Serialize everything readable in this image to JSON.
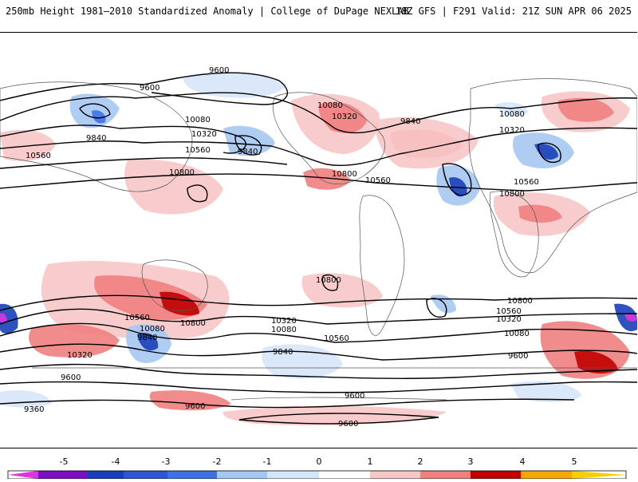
{
  "header": {
    "left_title": "250mb Height 1981–2010 Standardized Anomaly | College of DuPage NEXLAB",
    "right_title": "18Z GFS | F291 Valid: 21Z SUN APR 06 2025"
  },
  "colorbar": {
    "ticks": [
      "-5",
      "-4",
      "-3",
      "-2",
      "-1",
      "0",
      "1",
      "2",
      "3",
      "4",
      "5"
    ],
    "colors": [
      "#e033e0",
      "#7b10c0",
      "#1a3fb8",
      "#3f72e0",
      "#a6c8f2",
      "#d6e6fa",
      "#ffffff",
      "#f7c6c6",
      "#ef8080",
      "#e03a3a",
      "#c00000",
      "#f5a800",
      "#f5d000"
    ]
  },
  "contour_labels": [
    "9600",
    "9600",
    "9840",
    "10080",
    "10320",
    "10560",
    "10800",
    "9840",
    "10560",
    "10080",
    "10320",
    "9840",
    "10800",
    "10560",
    "10080",
    "10320",
    "10560",
    "10800",
    "10800",
    "10560",
    "10080",
    "10320",
    "9840",
    "10800",
    "10560",
    "10320",
    "10080",
    "9840",
    "9600",
    "9600",
    "9360",
    "9600",
    "9600",
    "9600",
    "10080",
    "10320",
    "10560",
    "10800"
  ]
}
